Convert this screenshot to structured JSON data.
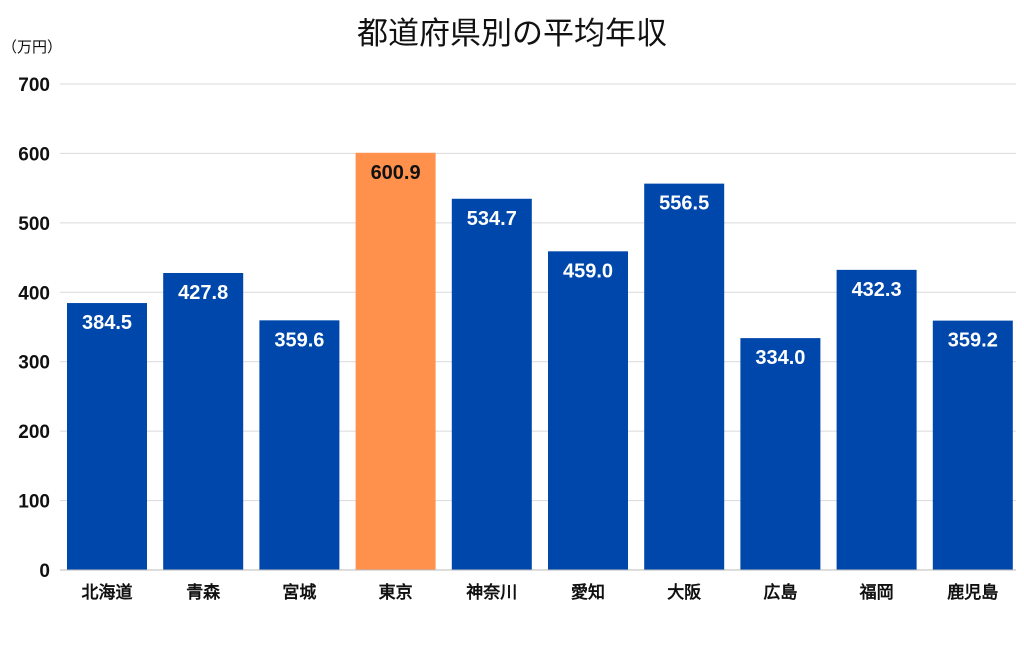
{
  "chart_data": {
    "type": "bar",
    "title": "都道府県別の平均年収",
    "ylabel": "（万円）",
    "xlabel": "",
    "categories": [
      "北海道",
      "青森",
      "宮城",
      "東京",
      "神奈川",
      "愛知",
      "大阪",
      "広島",
      "福岡",
      "鹿児島"
    ],
    "values": [
      384.5,
      427.8,
      359.6,
      600.9,
      534.7,
      459.0,
      556.5,
      334.0,
      432.3,
      359.2
    ],
    "value_labels": [
      "384.5",
      "427.8",
      "359.6",
      "600.9",
      "534.7",
      "459.0",
      "556.5",
      "334.0",
      "432.3",
      "359.2"
    ],
    "highlight_index": 3,
    "ylim": [
      0,
      700
    ],
    "yticks": [
      "0",
      "100",
      "200",
      "300",
      "400",
      "500",
      "600",
      "700"
    ],
    "grid": true,
    "colors": {
      "bar": "#0047AB",
      "highlight": "#FF914D",
      "grid": "#d9d9d9"
    }
  }
}
